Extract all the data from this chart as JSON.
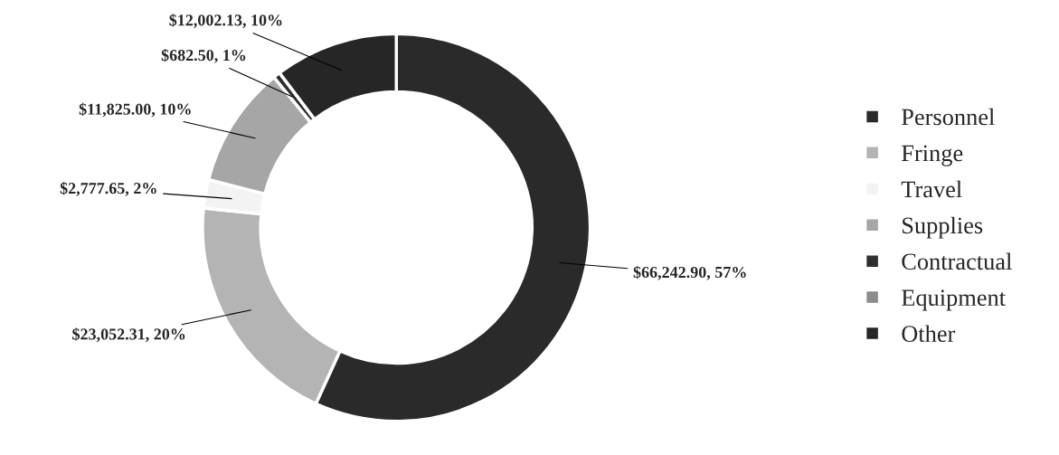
{
  "chart_data": {
    "type": "donut",
    "categories": [
      "Personnel",
      "Fringe",
      "Travel",
      "Supplies",
      "Contractual",
      "Equipment",
      "Other"
    ],
    "values": [
      66242.9,
      23052.31,
      2777.65,
      11825.0,
      682.5,
      0,
      12002.13
    ],
    "value_labels": [
      "$66,242.90, 57%",
      "$23,052.31, 20%",
      "$2,777.65, 2%",
      "$11,825.00, 10%",
      "$682.50, 1%",
      null,
      "$12,002.13, 10%"
    ],
    "colors": [
      "#2a2a2a",
      "#b4b4b4",
      "#f3f3f3",
      "#a6a6a6",
      "#2e2e2e",
      "#8c8c8c",
      "#262626"
    ],
    "legend": "right"
  }
}
